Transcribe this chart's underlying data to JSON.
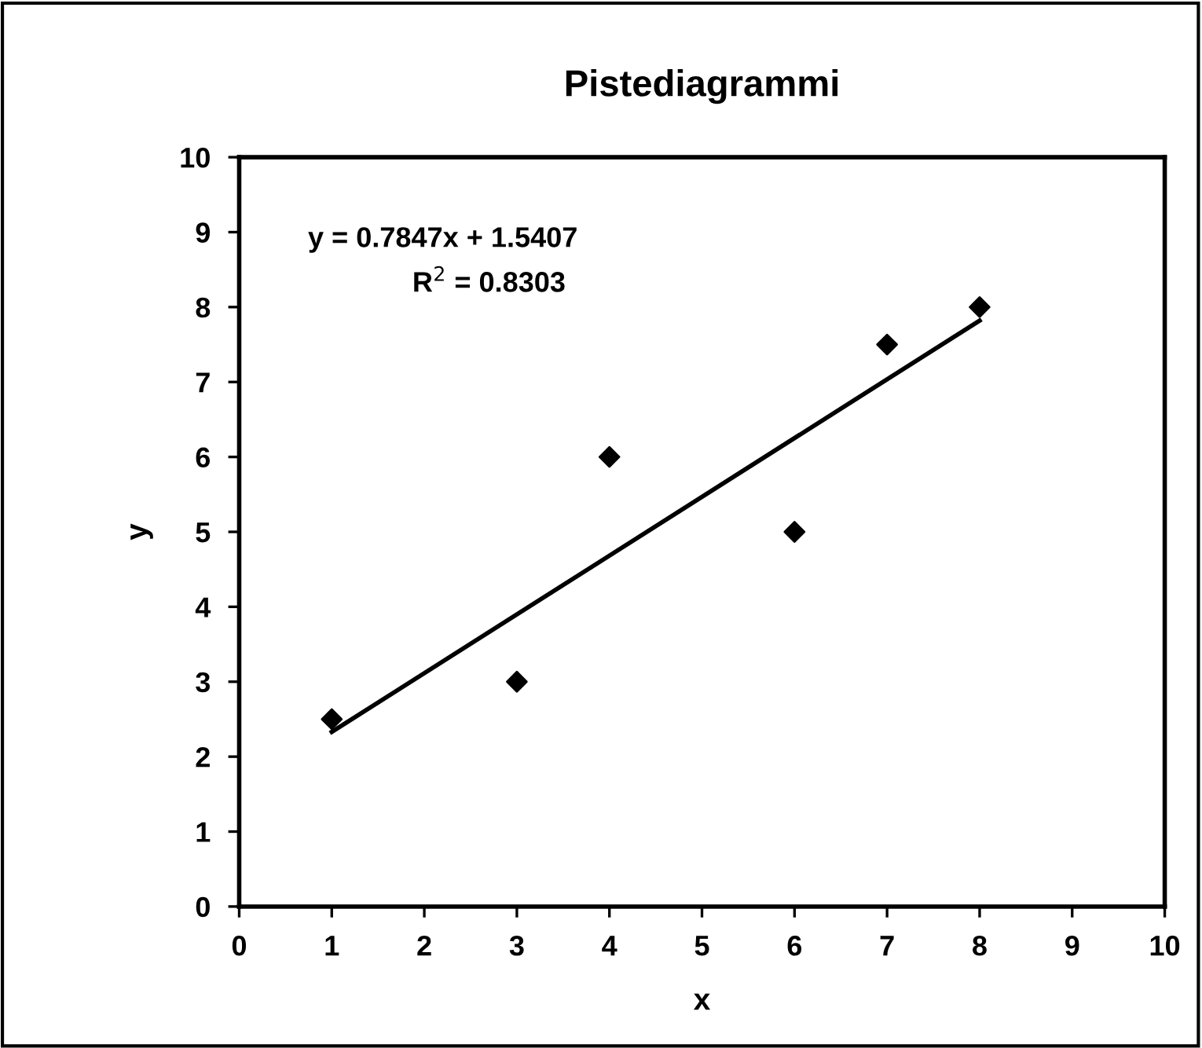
{
  "chart_data": {
    "type": "scatter",
    "title": "Pistediagrammi",
    "xlabel": "x",
    "ylabel": "y",
    "x": [
      1,
      3,
      4,
      6,
      7,
      8
    ],
    "series": [
      {
        "color": "#000000",
        "marker": "diamond",
        "values": [
          2.5,
          3,
          6,
          5,
          7.5,
          8
        ]
      },
      {
        "type": "line",
        "color": "#000000",
        "marker": "none",
        "line_style": "solid",
        "x": [
          1,
          8
        ],
        "values": [
          2.33,
          7.82
        ]
      }
    ],
    "annotations": [
      "y = 0.7847x + 1.5407",
      "R$^{2}$ = 0.8303"
    ],
    "xlim": [
      0,
      10
    ],
    "xticks": [
      0,
      1,
      2,
      3,
      4,
      5,
      6,
      7,
      8,
      9,
      10
    ],
    "ylim": [
      0,
      10
    ],
    "yticks": [
      0,
      1,
      2,
      3,
      4,
      5,
      6,
      7,
      8,
      9,
      10
    ],
    "grid": false,
    "legend": false
  }
}
